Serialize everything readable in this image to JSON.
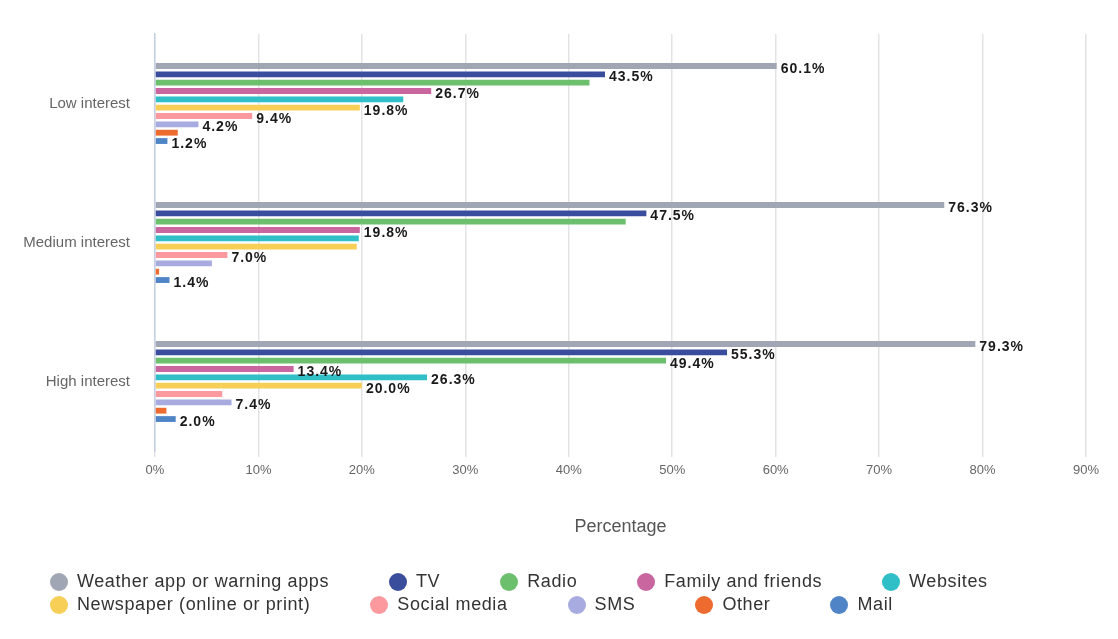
{
  "chart_data": {
    "type": "bar",
    "orientation": "horizontal",
    "categories": [
      "Low interest",
      "Medium interest",
      "High interest"
    ],
    "series": [
      {
        "name": "Weather app or warning apps",
        "color": "#a0a6b3",
        "values": [
          60.1,
          76.3,
          79.3
        ],
        "value_labels": [
          "60.1%",
          "76.3%",
          "79.3%"
        ]
      },
      {
        "name": "TV",
        "color": "#3a4d9c",
        "values": [
          43.5,
          47.5,
          55.3
        ],
        "value_labels": [
          "43.5%",
          "47.5%",
          "55.3%"
        ]
      },
      {
        "name": "Radio",
        "color": "#6cbf6c",
        "values": [
          42.0,
          45.5,
          49.4
        ],
        "value_labels": [
          null,
          null,
          "49.4%"
        ]
      },
      {
        "name": "Family and friends",
        "color": "#c966a0",
        "values": [
          26.7,
          19.8,
          13.4
        ],
        "value_labels": [
          "26.7%",
          "19.8%",
          "13.4%"
        ]
      },
      {
        "name": "Websites",
        "color": "#30bec7",
        "values": [
          24.0,
          19.7,
          26.3
        ],
        "value_labels": [
          null,
          null,
          "26.3%"
        ]
      },
      {
        "name": "Newspaper (online or print)",
        "color": "#f7cf57",
        "values": [
          19.8,
          19.5,
          20.0
        ],
        "value_labels": [
          "19.8%",
          null,
          "20.0%"
        ]
      },
      {
        "name": "Social media",
        "color": "#fb999f",
        "values": [
          9.4,
          7.0,
          6.5
        ],
        "value_labels": [
          "9.4%",
          "7.0%",
          null
        ]
      },
      {
        "name": "SMS",
        "color": "#a7abe0",
        "values": [
          4.2,
          5.5,
          7.4
        ],
        "value_labels": [
          "4.2%",
          null,
          "7.4%"
        ]
      },
      {
        "name": "Other",
        "color": "#ee6b30",
        "values": [
          2.2,
          0.4,
          1.1
        ]
      },
      {
        "name": "Mail",
        "color": "#4f85c6",
        "values": [
          1.2,
          1.4,
          2.0
        ],
        "value_labels": [
          "1.2%",
          "1.4%",
          "2.0%"
        ]
      }
    ],
    "xlabel": "Percentage",
    "xlim": [
      0,
      90
    ],
    "xticks": [
      {
        "value": 0,
        "label": "0%"
      },
      {
        "value": 10,
        "label": "10%"
      },
      {
        "value": 20,
        "label": "20%"
      },
      {
        "value": 30,
        "label": "30%"
      },
      {
        "value": 40,
        "label": "40%"
      },
      {
        "value": 50,
        "label": "50%"
      },
      {
        "value": 60,
        "label": "60%"
      },
      {
        "value": 70,
        "label": "70%"
      },
      {
        "value": 80,
        "label": "80%"
      },
      {
        "value": 90,
        "label": "90%"
      }
    ],
    "grid": "x",
    "legend": "bottom"
  }
}
